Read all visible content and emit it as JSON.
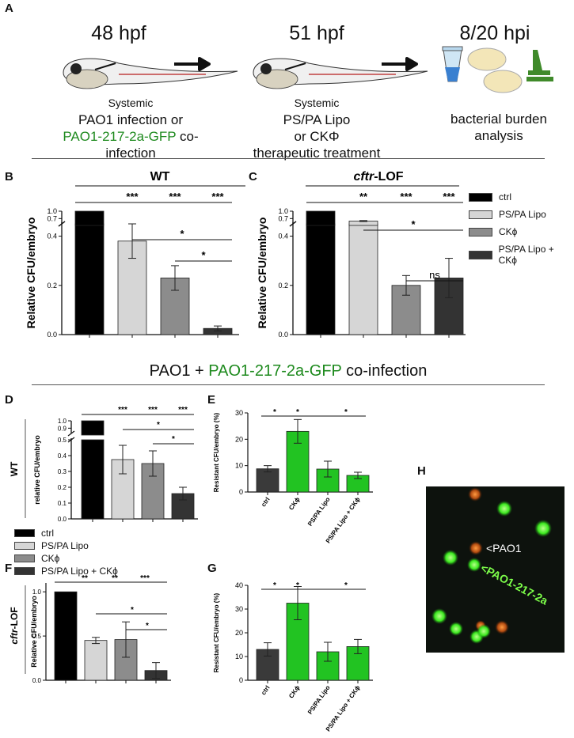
{
  "panel_labels": {
    "A": "A",
    "B": "B",
    "C": "C",
    "D": "D",
    "E": "E",
    "F": "F",
    "G": "G",
    "H": "H"
  },
  "timeline": {
    "steps": [
      {
        "time": "48 hpf",
        "line1": "Systemic",
        "line2": "PAO1 infection or",
        "line3_green": "PAO1-217-2a-GFP",
        "line3_rest": " co-infection"
      },
      {
        "time": "51 hpf",
        "line1": "Systemic",
        "line2": "PS/PA Lipo",
        "line3": "or CKΦ",
        "line4": "therapeutic treatment"
      },
      {
        "time": "8/20 hpi",
        "line1": "bacterial burden",
        "line2": "analysis"
      }
    ]
  },
  "coinfection_title": {
    "part1": "PAO1 + ",
    "part2_green": "PAO1-217-2a-GFP",
    "part3": " co-infection"
  },
  "legend_top": [
    "ctrl",
    "PS/PA Lipo",
    "CKϕ",
    "PS/PA Lipo + CKϕ"
  ],
  "legend_bottom": [
    "ctrl",
    "PS/PA Lipo",
    "CKϕ",
    "PS/PA Lipo + CKϕ"
  ],
  "colors": {
    "ctrl": "#000000",
    "lipo": "#d6d6d6",
    "ck": "#8c8c8c",
    "combo": "#333333",
    "green_bar": "#22c322",
    "dark_bar": "#3a3a3a",
    "accent_green": "#1e8a1e"
  },
  "microscopy": {
    "label_pao1": "<PAO1",
    "label_gfp": "<PAO1-217-2a"
  },
  "chart_data": [
    {
      "id": "B",
      "type": "bar",
      "title": "WT",
      "ylabel": "Relative CFU/embryo",
      "categories": [
        "ctrl",
        "PS/PA Lipo",
        "CKϕ",
        "PS/PA Lipo + CKϕ"
      ],
      "values": [
        1.0,
        0.38,
        0.23,
        0.025
      ],
      "errors": [
        0,
        0.07,
        0.05,
        0.01
      ],
      "yticks_lower": [
        "0.0",
        "0.2",
        "0.4"
      ],
      "yticks_upper": [
        "0.7",
        "1.0"
      ],
      "significance": [
        {
          "from": 0,
          "to": 3,
          "labels": [
            "***",
            "***",
            "***"
          ]
        },
        {
          "from": 1,
          "to": 3,
          "label": "*"
        },
        {
          "from": 2,
          "to": 3,
          "label": "*"
        }
      ]
    },
    {
      "id": "C",
      "type": "bar",
      "title": "cftr-LOF",
      "title_italic": "cftr",
      "title_rest": "-LOF",
      "ylabel": "Relative CFU/embryo",
      "categories": [
        "ctrl",
        "PS/PA Lipo",
        "CKϕ",
        "PS/PA Lipo + CKϕ"
      ],
      "values": [
        1.0,
        0.6,
        0.2,
        0.23
      ],
      "errors": [
        0,
        0.02,
        0.04,
        0.08
      ],
      "yticks_lower": [
        "0.0",
        "0.2",
        "0.4"
      ],
      "yticks_upper": [
        "0.7",
        "1.0"
      ],
      "significance": [
        {
          "from": 0,
          "to": 3,
          "labels": [
            "**",
            "***",
            "***"
          ]
        },
        {
          "from": 1,
          "to": 3,
          "label": "*"
        },
        {
          "from": 2,
          "to": 3,
          "label": "ns"
        }
      ]
    },
    {
      "id": "D",
      "type": "bar",
      "ylabel": "relative CFU/embryo",
      "group_label": "WT",
      "categories": [
        "ctrl",
        "PS/PA Lipo",
        "CKϕ",
        "PS/PA Lipo + CKϕ"
      ],
      "values": [
        1.0,
        0.375,
        0.35,
        0.16
      ],
      "errors": [
        0,
        0.09,
        0.08,
        0.04
      ],
      "yticks_lower": [
        "0.0",
        "0.1",
        "0.2",
        "0.3",
        "0.4",
        "0.5"
      ],
      "yticks_upper": [
        "0.9",
        "1.0"
      ],
      "significance": [
        {
          "from": 0,
          "to": 3,
          "labels": [
            "***",
            "***",
            "***"
          ]
        },
        {
          "from": 1,
          "to": 3,
          "label": "*"
        },
        {
          "from": 2,
          "to": 3,
          "label": "*"
        }
      ]
    },
    {
      "id": "E",
      "type": "bar",
      "ylabel": "Resistant CFU/embryo (%)",
      "categories": [
        "ctrl",
        "CKϕ",
        "PS/PA Lipo",
        "PS/PA Lipo + CKϕ"
      ],
      "values": [
        8.8,
        23.0,
        8.7,
        6.3
      ],
      "errors": [
        1.2,
        4.5,
        3.0,
        1.2
      ],
      "ylim": [
        0,
        30
      ],
      "yticks": [
        "0",
        "10",
        "20",
        "30"
      ],
      "significance": [
        {
          "from": 0,
          "to": 2,
          "labels": [
            "*",
            "*"
          ]
        },
        {
          "from": 2,
          "to": 3,
          "label": "*"
        }
      ]
    },
    {
      "id": "F",
      "type": "bar",
      "ylabel": "Relative CFU/embryo",
      "group_label_italic": "cftr",
      "group_label_rest": "-LOF",
      "categories": [
        "ctrl",
        "PS/PA Lipo",
        "CKϕ",
        "PS/PA Lipo + CKϕ"
      ],
      "values": [
        1.0,
        0.45,
        0.46,
        0.11
      ],
      "errors": [
        0,
        0.035,
        0.2,
        0.09
      ],
      "ylim": [
        0,
        1.1
      ],
      "yticks": [
        "0.0",
        "0.5",
        "1.0"
      ],
      "significance": [
        {
          "from": 0,
          "to": 3,
          "labels": [
            "**",
            "**",
            "***"
          ]
        },
        {
          "from": 1,
          "to": 3,
          "label": "*"
        },
        {
          "from": 2,
          "to": 3,
          "label": "*"
        }
      ]
    },
    {
      "id": "G",
      "type": "bar",
      "ylabel": "Resistant CFU/embryo (%)",
      "categories": [
        "ctrl",
        "CKϕ",
        "PS/PA Lipo",
        "PS/PA Lipo + CKϕ"
      ],
      "values": [
        13.0,
        32.5,
        12.0,
        14.2
      ],
      "errors": [
        2.8,
        7.0,
        4.0,
        3.0
      ],
      "ylim": [
        0,
        40
      ],
      "yticks": [
        "0",
        "10",
        "20",
        "30",
        "40"
      ],
      "significance": [
        {
          "from": 0,
          "to": 2,
          "labels": [
            "*",
            "*"
          ]
        },
        {
          "from": 2,
          "to": 3,
          "label": "*"
        }
      ]
    }
  ]
}
